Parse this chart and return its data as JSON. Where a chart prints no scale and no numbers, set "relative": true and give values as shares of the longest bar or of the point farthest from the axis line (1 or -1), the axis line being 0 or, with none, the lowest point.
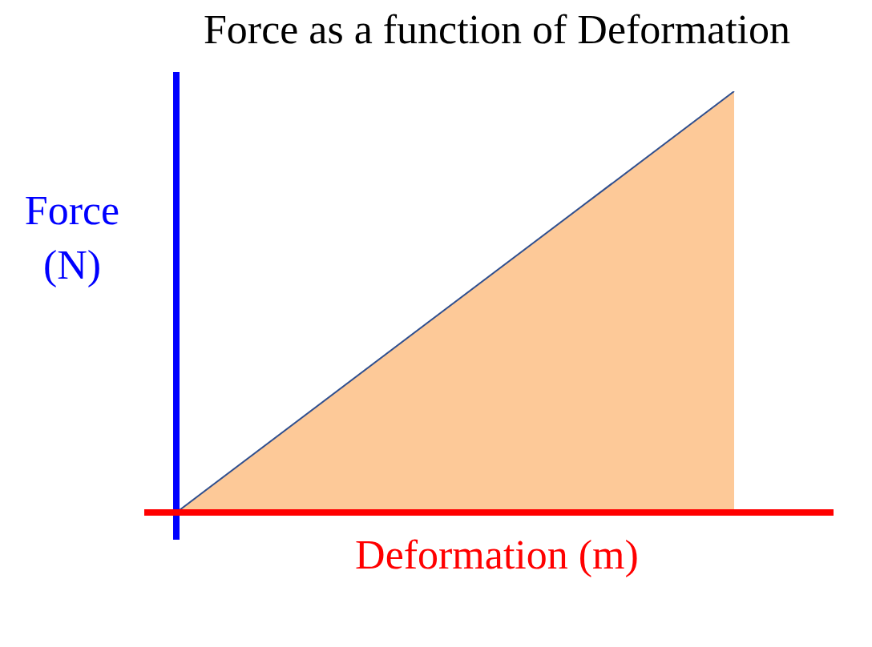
{
  "chart_data": {
    "type": "area",
    "title": "Force as a function of Deformation",
    "xlabel": "Deformation (m)",
    "ylabel": "Force (N)",
    "relative": true,
    "categories": [
      null,
      null
    ],
    "series": [
      {
        "color": "#fdc998",
        "values": [
          0,
          1
        ]
      }
    ]
  }
}
